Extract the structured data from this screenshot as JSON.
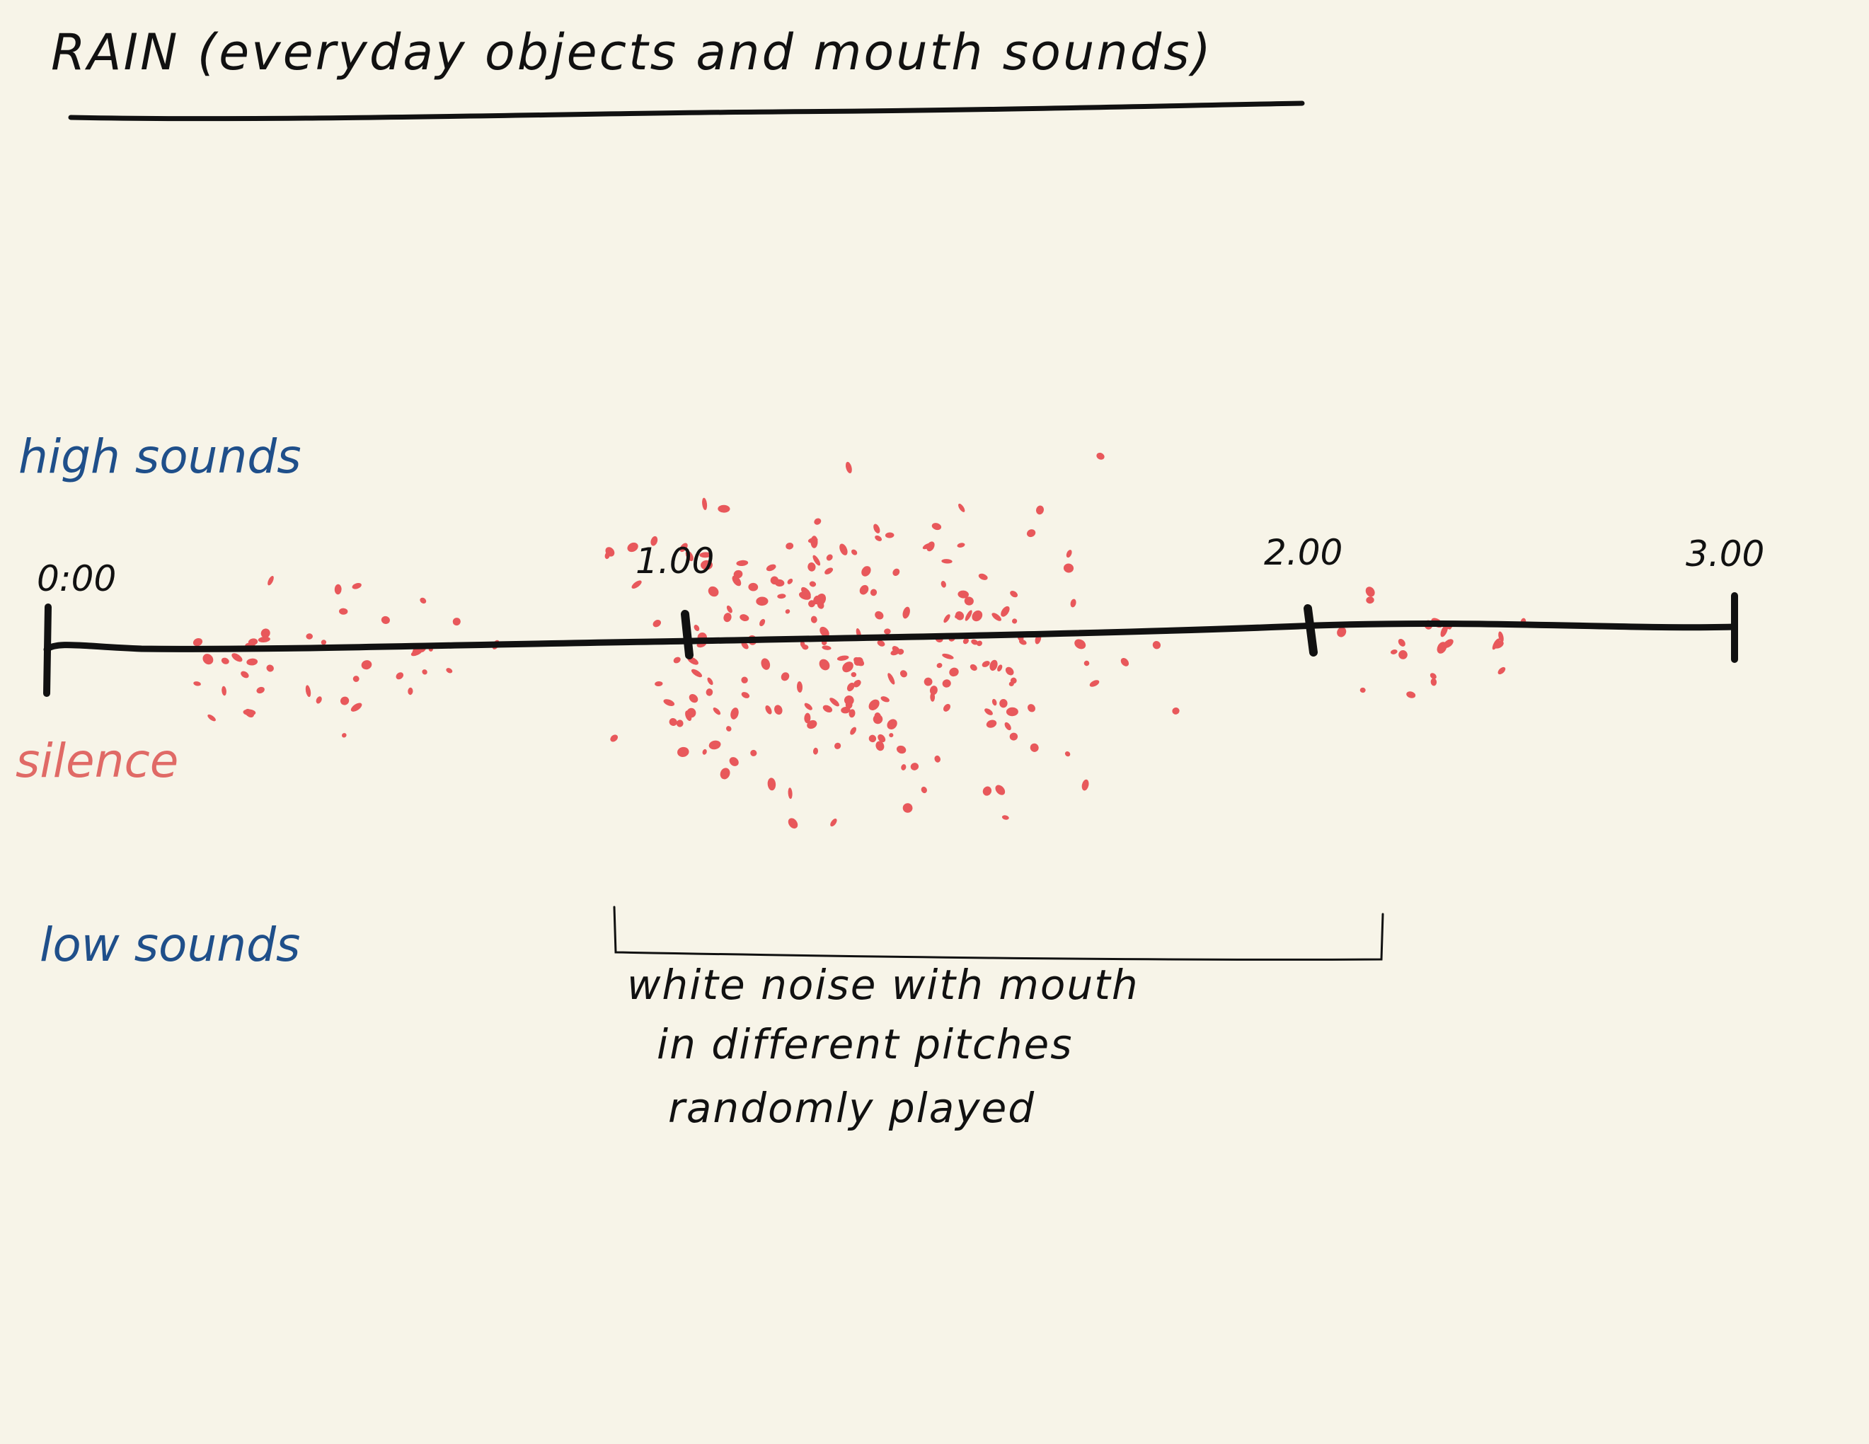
{
  "title": "RAIN (everyday objects and mouth sounds)",
  "labels": {
    "high": "high sounds",
    "silence": "silence",
    "low": "low sounds"
  },
  "timeline": {
    "ticks": [
      "0:00",
      "1.00",
      "2.00",
      "3.00"
    ]
  },
  "annotation": {
    "lines": [
      "white noise with mouth",
      "in different pitches",
      "randomly played"
    ]
  },
  "colors": {
    "background": "#f7f4e8",
    "ink": "#111111",
    "rain_dots": "#e8585b",
    "pitch_labels": "#1f4f8a",
    "silence_label": "#e06a66"
  }
}
